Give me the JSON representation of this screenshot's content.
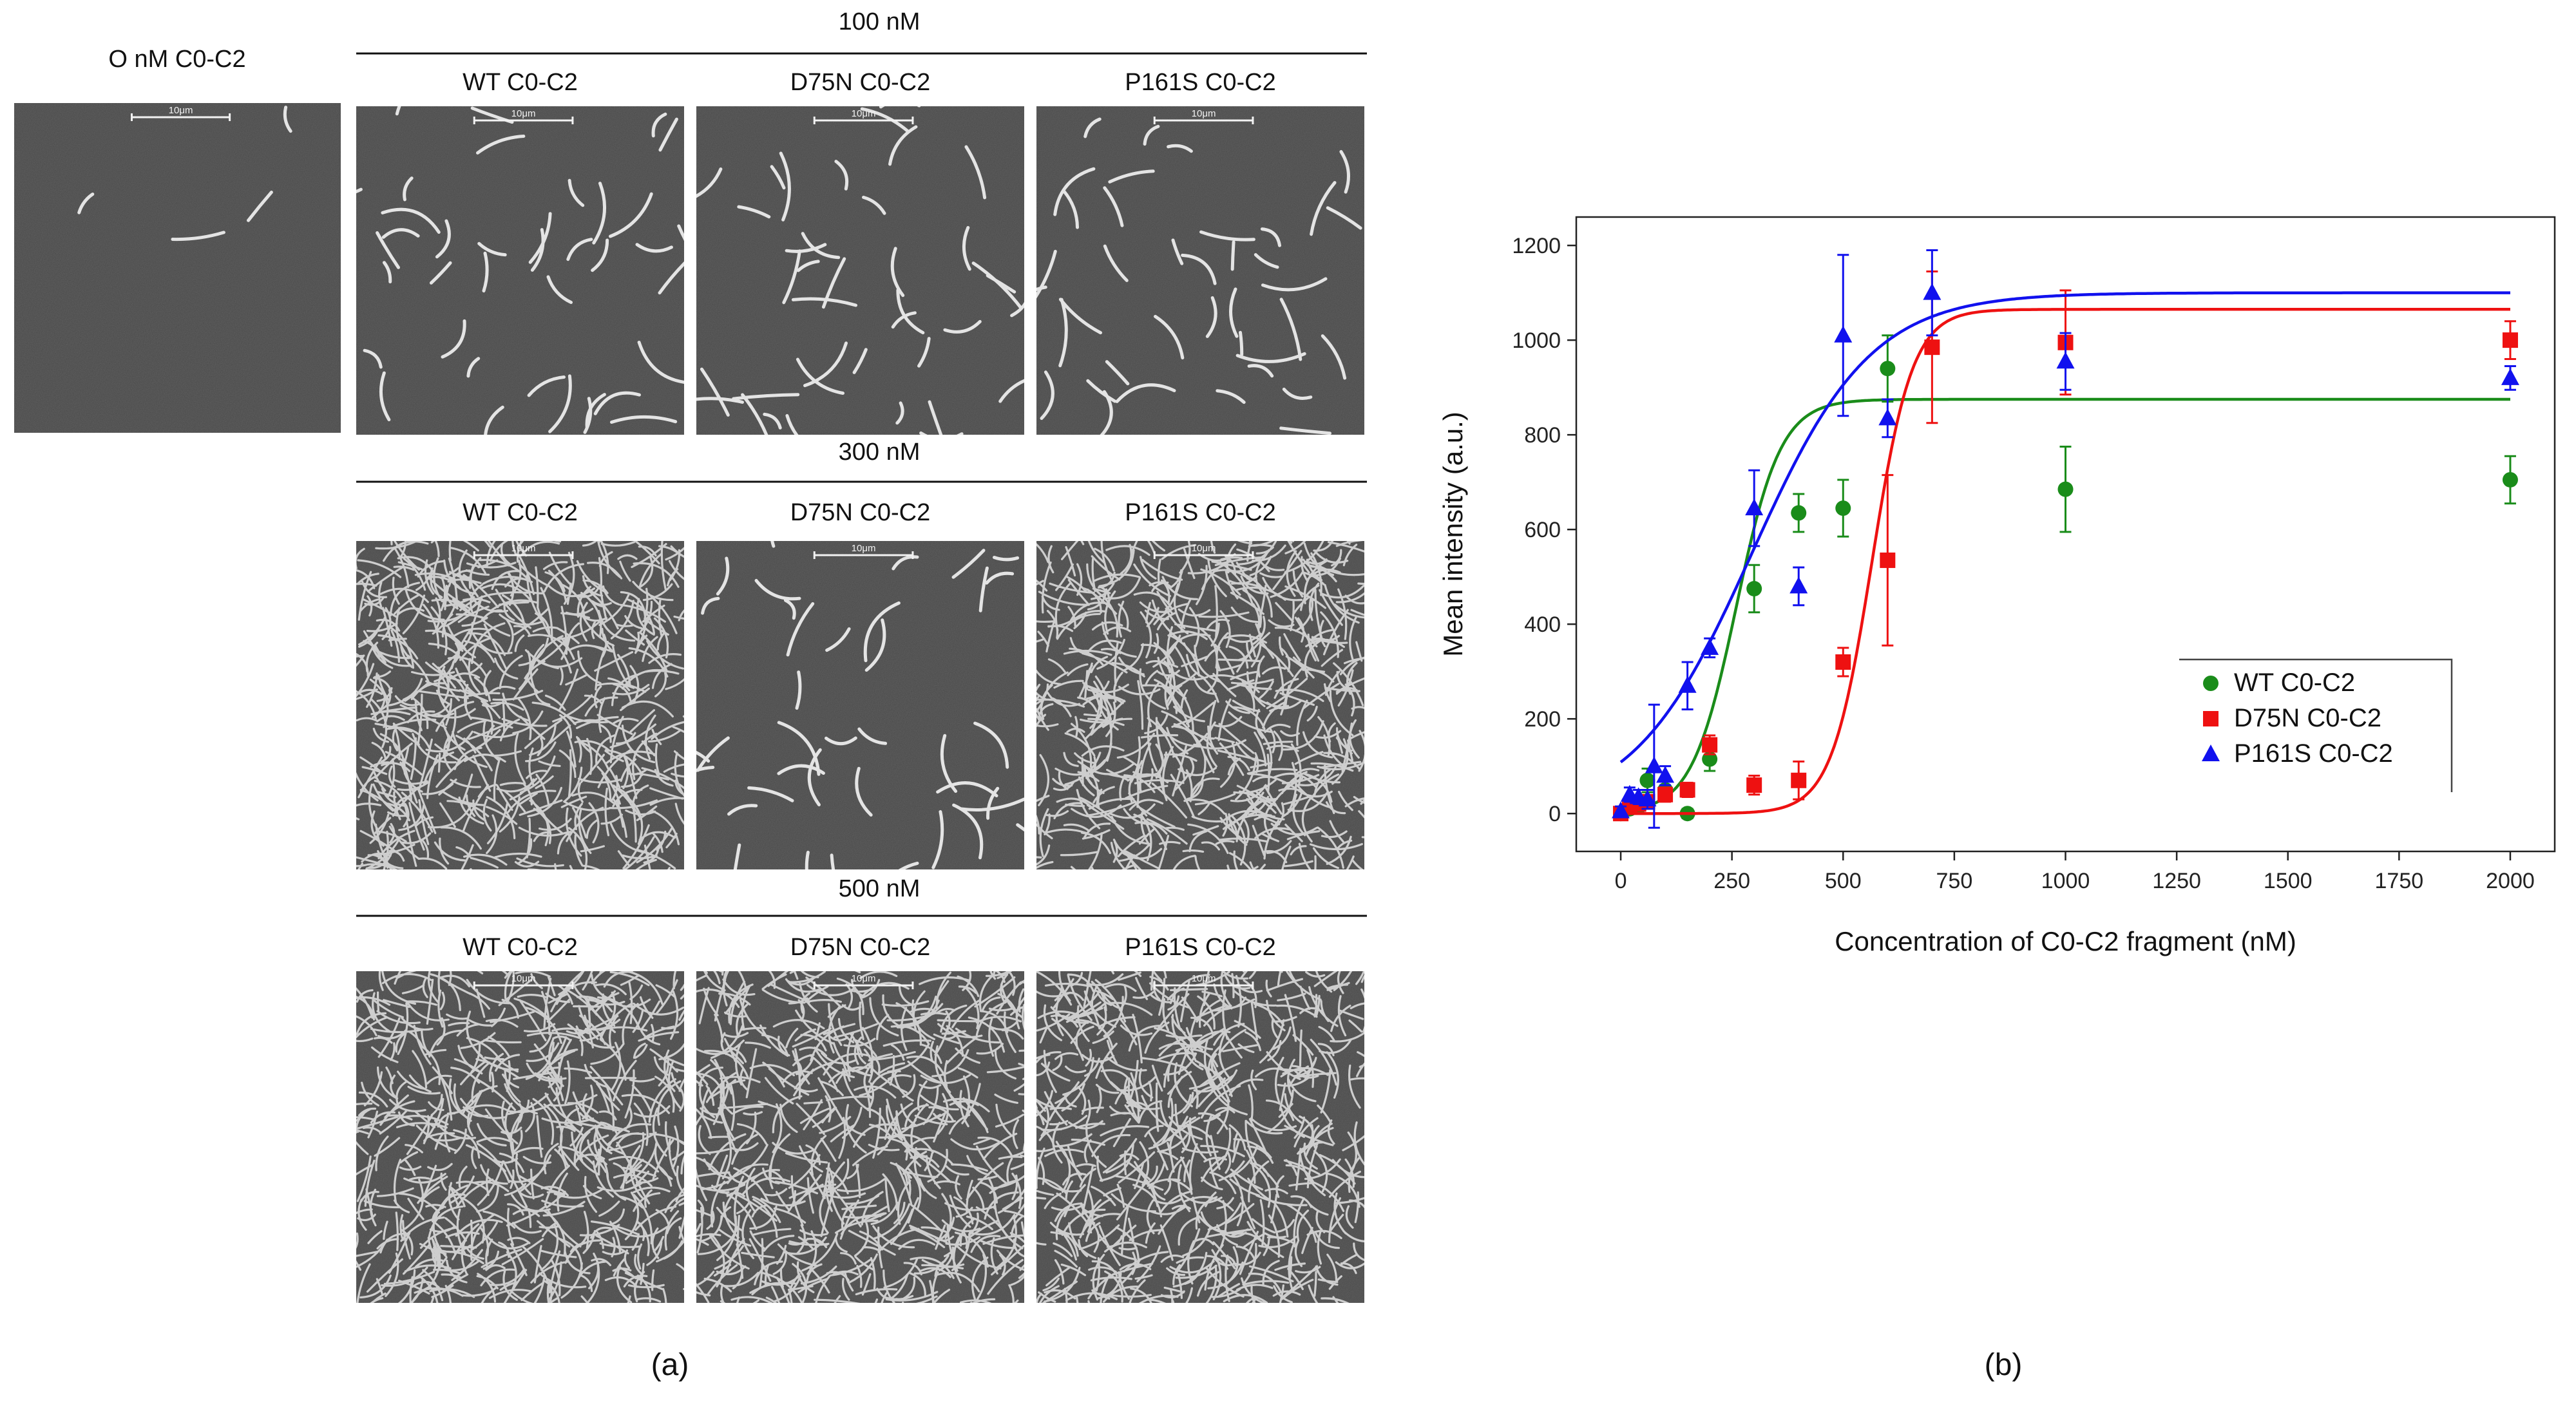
{
  "panel_a": {
    "control_label": "O nM C0-C2",
    "scale_bar_label": "10μm",
    "groups": [
      {
        "title": "100 nM",
        "labels": [
          "WT C0-C2",
          "D75N C0-C2",
          "P161S C0-C2"
        ],
        "density": [
          "sparse",
          "sparse",
          "sparse"
        ]
      },
      {
        "title": "300 nM",
        "labels": [
          "WT C0-C2",
          "D75N C0-C2",
          "P161S C0-C2"
        ],
        "density": [
          "dense",
          "sparse",
          "dense"
        ]
      },
      {
        "title": "500 nM",
        "labels": [
          "WT C0-C2",
          "D75N C0-C2",
          "P161S C0-C2"
        ],
        "density": [
          "dense",
          "dense",
          "dense"
        ]
      }
    ],
    "caption": "(a)"
  },
  "panel_b": {
    "caption": "(b)"
  },
  "chart_data": {
    "type": "scatter",
    "xlabel": "Concentration of C0-C2 fragment (nM)",
    "ylabel": "Mean intensity (a.u.)",
    "xlim": [
      -100,
      2100
    ],
    "ylim": [
      -80,
      1260
    ],
    "x_ticks": [
      0,
      250,
      500,
      750,
      1000,
      1250,
      1500,
      1750,
      2000
    ],
    "y_ticks": [
      0,
      200,
      400,
      600,
      800,
      1000,
      1200
    ],
    "grid": false,
    "legend_position": "center-right",
    "series": [
      {
        "name": "WT C0-C2",
        "color": "#1a8c1a",
        "marker": "circle",
        "x": [
          0,
          20,
          40,
          60,
          100,
          150,
          200,
          300,
          400,
          500,
          600,
          1000,
          2000
        ],
        "y": [
          0,
          10,
          15,
          70,
          50,
          0,
          115,
          475,
          635,
          645,
          940,
          685,
          705
        ],
        "err": [
          5,
          10,
          10,
          25,
          20,
          10,
          25,
          50,
          40,
          60,
          70,
          90,
          50
        ],
        "fit": {
          "A": 875,
          "x0": 260,
          "k": 0.02
        }
      },
      {
        "name": "D75N C0-C2",
        "color": "#ee1111",
        "marker": "square",
        "x": [
          0,
          20,
          40,
          60,
          100,
          150,
          200,
          300,
          400,
          500,
          600,
          700,
          1000,
          2000
        ],
        "y": [
          0,
          15,
          20,
          25,
          40,
          50,
          145,
          60,
          70,
          320,
          535,
          985,
          995,
          1000
        ],
        "err": [
          5,
          10,
          10,
          10,
          15,
          15,
          20,
          20,
          40,
          30,
          180,
          160,
          110,
          40
        ],
        "fit": {
          "A": 1065,
          "x0": 565,
          "k": 0.022
        }
      },
      {
        "name": "P161S C0-C2",
        "color": "#1111ee",
        "marker": "triangle",
        "x": [
          0,
          20,
          40,
          60,
          75,
          100,
          150,
          200,
          300,
          400,
          500,
          600,
          700,
          1000,
          2000
        ],
        "y": [
          5,
          40,
          35,
          30,
          100,
          80,
          270,
          350,
          645,
          480,
          1010,
          835,
          1100,
          955,
          920
        ],
        "err": [
          10,
          15,
          15,
          20,
          130,
          20,
          50,
          20,
          80,
          40,
          170,
          40,
          90,
          60,
          25
        ],
        "fit": {
          "A": 1100,
          "x0": 295,
          "k": 0.0075
        }
      }
    ]
  }
}
